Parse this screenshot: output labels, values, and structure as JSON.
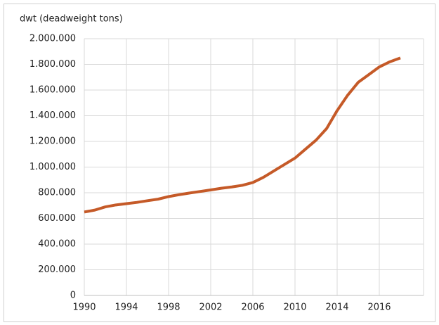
{
  "chart_data": {
    "type": "line",
    "title": "dwt (deadweight tons)",
    "categories": [
      "1990",
      null,
      null,
      null,
      "1994",
      null,
      null,
      null,
      "1998",
      null,
      null,
      null,
      "2002",
      null,
      null,
      null,
      "2006",
      null,
      null,
      null,
      "2010",
      null,
      null,
      null,
      "2014",
      null,
      null,
      null,
      "2016",
      null,
      null
    ],
    "series": [
      {
        "name": "dwt",
        "color": "#c55a28",
        "values": [
          650000,
          665000,
          690000,
          705000,
          715000,
          725000,
          738000,
          750000,
          770000,
          785000,
          798000,
          810000,
          822000,
          835000,
          845000,
          858000,
          880000,
          920000,
          970000,
          1020000,
          1070000,
          1140000,
          1210000,
          1300000,
          1440000,
          1560000,
          1660000,
          1720000,
          1780000,
          1820000,
          1850000
        ]
      }
    ],
    "ylim": [
      0,
      2000000
    ],
    "yticks": [
      0,
      {
        "value": 200000,
        "label": "200.000"
      },
      {
        "value": 400000,
        "label": "400.000"
      },
      {
        "value": 600000,
        "label": "600.000"
      },
      {
        "value": 800000,
        "label": "800.000"
      },
      {
        "value": 1000000,
        "label": "1.000.000"
      },
      {
        "value": 1200000,
        "label": "1.200.000"
      },
      {
        "value": 1400000,
        "label": "1.400.000"
      },
      {
        "value": 1600000,
        "label": "1.600.000"
      },
      {
        "value": 1800000,
        "label": "1.800.000"
      },
      {
        "value": 2000000,
        "label": "2.000.000"
      }
    ],
    "grid": true
  }
}
